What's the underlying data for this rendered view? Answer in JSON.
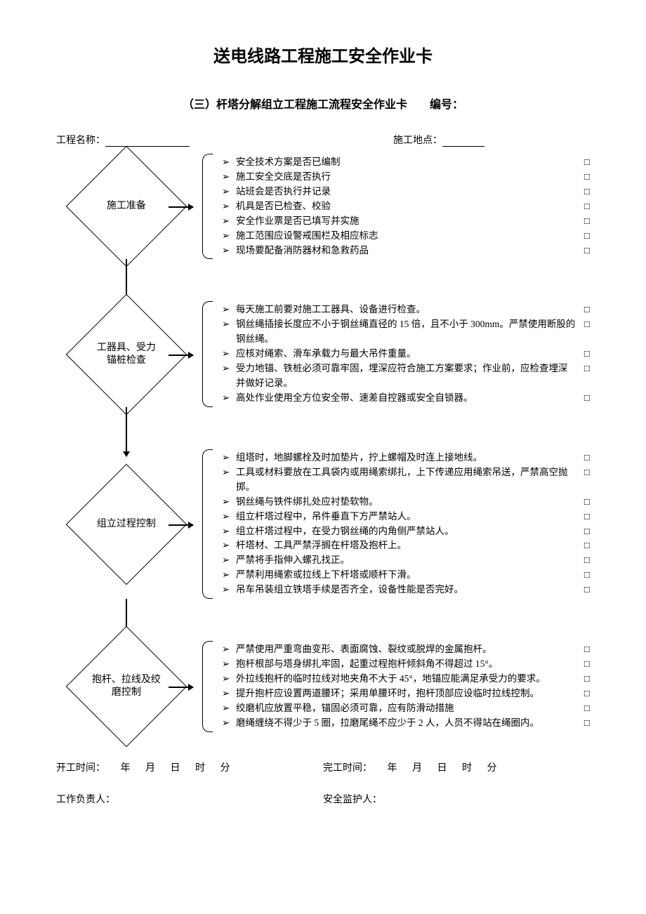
{
  "title": "送电线路工程施工安全作业卡",
  "subtitle": "（三）杆塔分解组立工程施工流程安全作业卡　　编号：",
  "header": {
    "project_label": "工程名称：",
    "location_label": "施工地点："
  },
  "sections": [
    {
      "node": "施工准备",
      "items": [
        "安全技术方案是否已编制",
        "施工安全交底是否执行",
        "站班会是否执行并记录",
        "机具是否已检查、校验",
        "安全作业票是否已填写并实施",
        "施工范围应设警戒围栏及相应标志",
        "现场要配备消防器材和急救药品"
      ]
    },
    {
      "node": "工器具、受力\n锚桩检查",
      "items": [
        "每天施工前要对施工工器具、设备进行检查。",
        "钢丝绳插接长度应不小于钢丝绳直径的 15 倍，且不小于 300mm。严禁使用断股的钢丝绳。",
        "应核对绳索、滑车承载力与最大吊件重量。",
        "受力地锚、铁桩必须可靠牢固，埋深应符合施工方案要求；作业前，应检查埋深并做好记录。",
        "高处作业使用全方位安全带、速差自控器或安全自锁器。"
      ]
    },
    {
      "node": "组立过程控制",
      "items": [
        "组塔时，地脚螺栓及时加垫片，拧上螺帽及时连上接地线。",
        "工具或材料要放在工具袋内或用绳索绑扎，上下传递应用绳索吊送，严禁高空抛掷。",
        "钢丝绳与铁件绑扎处应衬垫软物。",
        "组立杆塔过程中，吊件垂直下方严禁站人。",
        "组立杆塔过程中，在受力钢丝绳的内角侧严禁站人。",
        "杆塔材、工具严禁浮搁在杆塔及抱杆上。",
        "严禁将手指伸入螺孔找正。",
        "严禁利用绳索或拉线上下杆塔或顺杆下滑。",
        "吊车吊装组立铁塔手续是否齐全，设备性能是否完好。"
      ]
    },
    {
      "node": "抱杆、拉线及绞\n磨控制",
      "items": [
        "严禁使用严重弯曲变形、表面腐蚀、裂纹或脱焊的金属抱杆。",
        "抱杆根部与塔身绑扎牢固，起重过程抱杆倾斜角不得超过 15°。",
        "外拉线抱杆的临时拉线对地夹角不大于 45°，地锚应能满足承受力的要求。",
        "提升抱杆应设置两道腰环；采用单腰环时，抱杆顶部应设临时拉线控制。",
        "绞磨机应放置平稳，锚固必须可靠，应有防滑动措施",
        "磨绳缠绕不得少于 5 圈，拉磨尾绳不应少于 2 人，人员不得站在绳圈内。"
      ]
    }
  ],
  "footer": {
    "start_label": "开工时间：",
    "end_label": "完工时间：",
    "date_parts": [
      "年",
      "月",
      "日",
      "时",
      "分"
    ],
    "responsible_label": "工作负责人：",
    "supervisor_label": "安全监护人："
  },
  "glyphs": {
    "chevron": "➢",
    "checkbox": "□"
  }
}
